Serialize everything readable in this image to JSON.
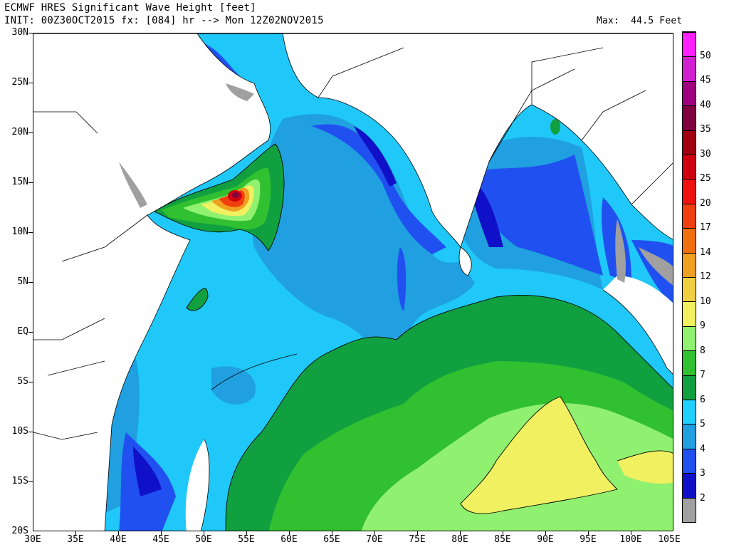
{
  "header": {
    "title": "ECMWF HRES Significant Wave Height [feet]",
    "init": "INIT: 00Z30OCT2015 fx: [084] hr --> Mon 12Z02NOV2015",
    "max_label": "Max:  44.5 Feet"
  },
  "axes": {
    "y_labels": [
      "30N",
      "25N",
      "20N",
      "15N",
      "10N",
      "5N",
      "EQ",
      "5S",
      "10S",
      "15S",
      "20S"
    ],
    "x_labels": [
      "30E",
      "35E",
      "40E",
      "45E",
      "50E",
      "55E",
      "60E",
      "65E",
      "70E",
      "75E",
      "80E",
      "85E",
      "90E",
      "95E",
      "100E",
      "105E"
    ],
    "lat_range": [
      -20,
      30
    ],
    "lon_range": [
      30,
      105
    ]
  },
  "colorbar": {
    "labels": [
      "2",
      "3",
      "4",
      "5",
      "6",
      "7",
      "8",
      "9",
      "10",
      "12",
      "14",
      "17",
      "20",
      "25",
      "30",
      "35",
      "40",
      "45",
      "50"
    ],
    "colors": [
      "#a0a0a0",
      "#1010c8",
      "#2050f0",
      "#20a0e0",
      "#20d0ff",
      "#10a040",
      "#30c030",
      "#90f070",
      "#f0f060",
      "#f0d040",
      "#f0a020",
      "#f07010",
      "#f04010",
      "#f01010",
      "#d00010",
      "#a00010",
      "#800040",
      "#a00080",
      "#d020d0",
      "#ff20ff"
    ]
  },
  "field": {
    "max_value": 44.5,
    "units": "feet"
  }
}
